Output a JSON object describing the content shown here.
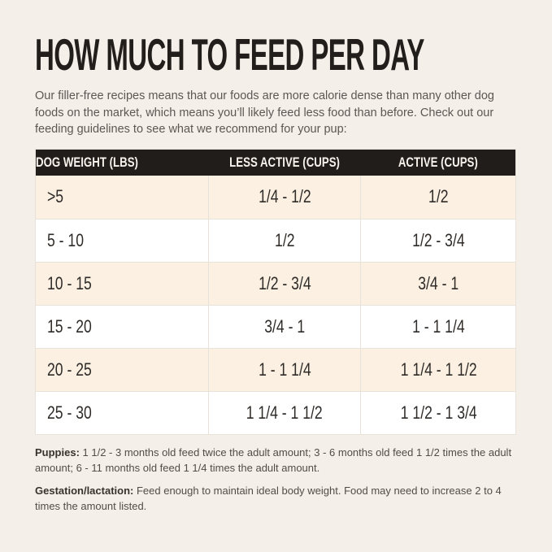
{
  "theme": {
    "page_bg": "#f4f0e9",
    "header_bg": "#211d1a",
    "header_text": "#f7f3ec",
    "row_alt_bg": "#fbf0e1",
    "row_bg": "#ffffff",
    "border": "#e7e3da",
    "title_color": "#221e1b"
  },
  "header": {
    "title": "HOW MUCH TO FEED PER DAY",
    "intro": "Our filler-free recipes means that our foods are more calorie dense than many other dog foods on the market, which means you’ll likely feed less food than before. Check out our feeding guidelines to see what we recommend for your pup:"
  },
  "table": {
    "columns": [
      "DOG WEIGHT (LBS)",
      "LESS ACTIVE (CUPS)",
      "ACTIVE (CUPS)"
    ],
    "rows": [
      {
        "weight": ">5",
        "less_active": "1/4 - 1/2",
        "active": "1/2"
      },
      {
        "weight": "5 - 10",
        "less_active": "1/2",
        "active": "1/2 - 3/4"
      },
      {
        "weight": "10 - 15",
        "less_active": "1/2 - 3/4",
        "active": "3/4 - 1"
      },
      {
        "weight": "15 - 20",
        "less_active": "3/4 - 1",
        "active": "1 - 1 1/4"
      },
      {
        "weight": "20 - 25",
        "less_active": "1 - 1 1/4",
        "active": "1 1/4 - 1 1/2"
      },
      {
        "weight": "25 - 30",
        "less_active": "1 1/4 - 1 1/2",
        "active": "1 1/2 - 1 3/4"
      }
    ]
  },
  "notes": [
    {
      "label": "Puppies:",
      "text": " 1 1/2 - 3 months old feed twice the adult amount; 3 - 6 months old feed 1 1/2 times the adult amount; 6 - 11 months old feed 1 1/4 times the adult amount."
    },
    {
      "label": "Gestation/lactation:",
      "text": " Feed enough to maintain ideal body weight. Food may need to increase 2 to 4 times the amount listed."
    }
  ]
}
